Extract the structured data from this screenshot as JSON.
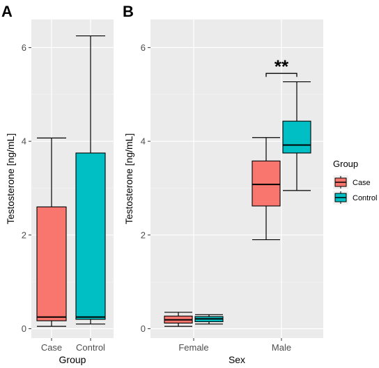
{
  "panels": {
    "a_letter": "A",
    "b_letter": "B"
  },
  "chart_data": [
    {
      "type": "boxplot",
      "panel": "A",
      "xlabel": "Group",
      "ylabel": "Testosterone [ng/mL]",
      "categories": [
        "Case",
        "Control"
      ],
      "ylim": [
        -0.2,
        6.6
      ],
      "yticks": [
        0,
        2,
        4,
        6
      ],
      "grid": true,
      "boxes": [
        {
          "category": "Case",
          "group": "Case",
          "color": "#F8766D",
          "min": 0.05,
          "q1": 0.17,
          "median": 0.25,
          "q3": 2.6,
          "max": 4.07
        },
        {
          "category": "Control",
          "group": "Control",
          "color": "#00BFC4",
          "min": 0.1,
          "q1": 0.2,
          "median": 0.25,
          "q3": 3.75,
          "max": 6.25
        }
      ]
    },
    {
      "type": "boxplot",
      "panel": "B",
      "xlabel": "Sex",
      "ylabel": "Testosterone [ng/mL]",
      "categories": [
        "Female",
        "Male"
      ],
      "ylim": [
        -0.2,
        6.6
      ],
      "yticks": [
        0,
        2,
        4,
        6
      ],
      "grid": true,
      "legend": {
        "title": "Group",
        "position": "right",
        "entries": [
          {
            "name": "Case",
            "color": "#F8766D"
          },
          {
            "name": "Control",
            "color": "#00BFC4"
          }
        ]
      },
      "boxes": [
        {
          "category": "Female",
          "group": "Case",
          "color": "#F8766D",
          "min": 0.05,
          "q1": 0.12,
          "median": 0.19,
          "q3": 0.27,
          "max": 0.35
        },
        {
          "category": "Female",
          "group": "Control",
          "color": "#00BFC4",
          "min": 0.1,
          "q1": 0.15,
          "median": 0.21,
          "q3": 0.26,
          "max": 0.3
        },
        {
          "category": "Male",
          "group": "Case",
          "color": "#F8766D",
          "min": 1.9,
          "q1": 2.62,
          "median": 3.08,
          "q3": 3.58,
          "max": 4.08
        },
        {
          "category": "Male",
          "group": "Control",
          "color": "#00BFC4",
          "min": 2.95,
          "q1": 3.75,
          "median": 3.92,
          "q3": 4.43,
          "max": 5.27
        }
      ],
      "annotation": {
        "text": "**",
        "between": [
          "Case",
          "Control"
        ],
        "category": "Male",
        "y": 5.45
      }
    }
  ]
}
